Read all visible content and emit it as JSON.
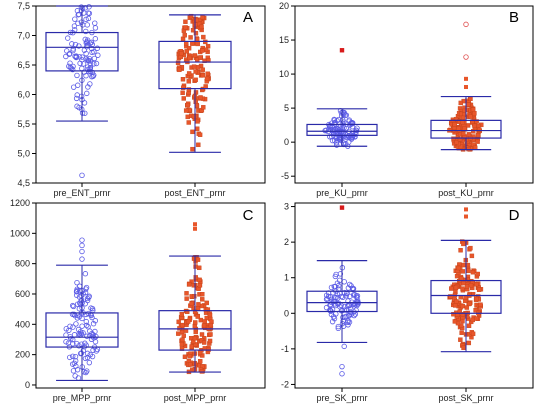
{
  "chart_data": [
    {
      "panel": "A",
      "type": "box",
      "categories": [
        "pre_ENT_prnr",
        "post_ENT_prnr"
      ],
      "ylim": [
        4.5,
        7.5
      ],
      "yticks": [
        "4,5",
        "5,0",
        "5,5",
        "6,0",
        "6,5",
        "7,0",
        "7,5"
      ],
      "ytick_values": [
        4.5,
        5.0,
        5.5,
        6.0,
        6.5,
        7.0,
        7.5
      ],
      "series": [
        {
          "name": "pre_ENT_prnr",
          "marker": "circle",
          "color": "#5a5ae6",
          "whisker_low": 5.55,
          "q1": 6.4,
          "median": 6.8,
          "q3": 7.05,
          "whisker_high": 7.5,
          "outliers": [
            4.63
          ],
          "n": 110,
          "spread_low": 5.55,
          "spread_high": 7.52
        },
        {
          "name": "post_ENT_prnr",
          "marker": "square",
          "color": "#e8562a",
          "whisker_low": 5.02,
          "q1": 6.1,
          "median": 6.55,
          "q3": 6.9,
          "whisker_high": 7.35,
          "outliers": [],
          "n": 150,
          "spread_low": 5.02,
          "spread_high": 7.35
        }
      ]
    },
    {
      "panel": "B",
      "type": "box",
      "categories": [
        "pre_KU_prnr",
        "post_KU_prnr"
      ],
      "ylim": [
        -6,
        20
      ],
      "yticks": [
        "-5",
        "0",
        "5",
        "10",
        "15",
        "20"
      ],
      "ytick_values": [
        -5,
        0,
        5,
        10,
        15,
        20
      ],
      "series": [
        {
          "name": "pre_KU_prnr",
          "marker": "circle",
          "color": "#5a5ae6",
          "whisker_low": -0.6,
          "q1": 1.0,
          "median": 1.6,
          "q3": 2.6,
          "whisker_high": 4.9,
          "outliers": [
            13.5
          ],
          "n": 110,
          "spread_low": -0.6,
          "spread_high": 6.2
        },
        {
          "name": "post_KU_prnr",
          "marker": "square",
          "color": "#e8562a",
          "whisker_low": -1.1,
          "q1": 0.6,
          "median": 1.7,
          "q3": 3.2,
          "whisker_high": 6.7,
          "outliers": [
            8.1,
            9.3,
            12.5,
            17.3
          ],
          "n": 150,
          "spread_low": -1.1,
          "spread_high": 6.5
        }
      ]
    },
    {
      "panel": "C",
      "type": "box",
      "categories": [
        "pre_MPP_prnr",
        "post_MPP_prnr"
      ],
      "ylim": [
        -20,
        1200
      ],
      "yticks": [
        "0",
        "200",
        "400",
        "600",
        "800",
        "1000",
        "1200"
      ],
      "ytick_values": [
        0,
        200,
        400,
        600,
        800,
        1000,
        1200
      ],
      "series": [
        {
          "name": "pre_MPP_prnr",
          "marker": "circle",
          "color": "#5a5ae6",
          "whisker_low": 30,
          "q1": 250,
          "median": 315,
          "q3": 475,
          "whisker_high": 790,
          "outliers": [
            830,
            880,
            920,
            955
          ],
          "n": 120,
          "spread_low": 30,
          "spread_high": 790
        },
        {
          "name": "post_MPP_prnr",
          "marker": "square",
          "color": "#e8562a",
          "whisker_low": 85,
          "q1": 230,
          "median": 370,
          "q3": 490,
          "whisker_high": 850,
          "outliers": [
            1030,
            1060
          ],
          "n": 150,
          "spread_low": 85,
          "spread_high": 850
        }
      ]
    },
    {
      "panel": "D",
      "type": "box",
      "categories": [
        "pre_SK_prnr",
        "post_SK_prnr"
      ],
      "ylim": [
        -2.1,
        3.1
      ],
      "yticks": [
        "-2",
        "-1",
        "0",
        "1",
        "2",
        "3"
      ],
      "ytick_values": [
        -2,
        -1,
        0,
        1,
        2,
        3
      ],
      "series": [
        {
          "name": "pre_SK_prnr",
          "marker": "circle",
          "color": "#5a5ae6",
          "whisker_low": -0.82,
          "q1": 0.05,
          "median": 0.3,
          "q3": 0.62,
          "whisker_high": 1.48,
          "outliers": [
            -1.5,
            -1.7,
            2.97
          ],
          "n": 110,
          "spread_low": -1.25,
          "spread_high": 2.1
        },
        {
          "name": "post_SK_prnr",
          "marker": "square",
          "color": "#e8562a",
          "whisker_low": -1.08,
          "q1": 0.0,
          "median": 0.5,
          "q3": 0.92,
          "whisker_high": 2.05,
          "outliers": [
            2.72,
            2.92
          ],
          "n": 150,
          "spread_low": -1.08,
          "spread_high": 2.1
        }
      ]
    }
  ]
}
